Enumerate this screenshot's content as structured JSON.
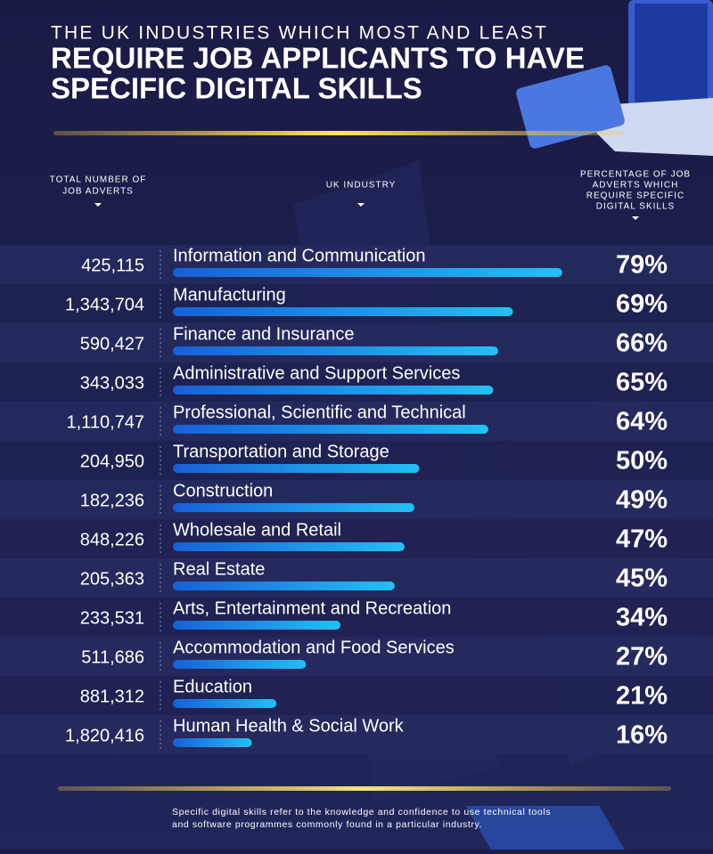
{
  "chart_data": {
    "type": "bar",
    "title": "THE UK INDUSTRIES WHICH MOST AND LEAST",
    "subtitle": [
      "REQUIRE JOB APPLICANTS TO HAVE",
      "SPECIFIC DIGITAL SKILLS"
    ],
    "category_label": "UK INDUSTRY",
    "categories": [
      "Information and Communication",
      "Manufacturing",
      "Finance and Insurance",
      "Administrative and Support Services",
      "Professional, Scientific and Technical",
      "Transportation and Storage",
      "Construction",
      "Wholesale and Retail",
      "Real Estate",
      "Arts, Entertainment and Recreation",
      "Accommodation and Food Services",
      "Education",
      "Human Health & Social Work"
    ],
    "series": [
      {
        "name": [
          "PERCENTAGE OF JOB",
          "ADVERTS WHICH",
          "REQUIRE SPECIFIC",
          "DIGITAL SKILLS"
        ],
        "color": "#1ea8f0",
        "values": [
          79,
          69,
          66,
          65,
          64,
          50,
          49,
          47,
          45,
          34,
          27,
          21,
          16
        ],
        "value_labels": [
          "79%",
          "69%",
          "66%",
          "65%",
          "64%",
          "50%",
          "49%",
          "47%",
          "45%",
          "34%",
          "27%",
          "21%",
          "16%"
        ]
      }
    ],
    "adverts": {
      "name": [
        "TOTAL NUMBER OF",
        "JOB ADVERTS"
      ],
      "values": [
        425115,
        1343704,
        590427,
        343033,
        1110747,
        204950,
        182236,
        848226,
        205363,
        233531,
        511686,
        881312,
        1820416
      ],
      "value_labels": [
        "425,115",
        "1,343,704",
        "590,427",
        "343,033",
        "1,110,747",
        "204,950",
        "182,236",
        "848,226",
        "205,363",
        "233,531",
        "511,686",
        "881,312",
        "1,820,416"
      ]
    },
    "xlim": [
      0,
      100
    ],
    "footnote": [
      "Specific digital skills refer to the knowledge and confidence to use technical tools",
      "and software programmes commonly found in a particular industry."
    ]
  }
}
